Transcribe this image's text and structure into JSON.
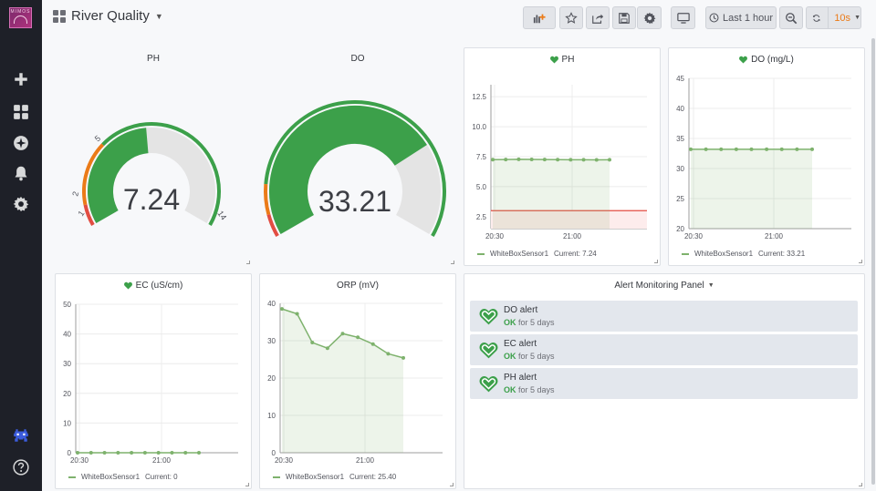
{
  "sidebar": {
    "logo_text": "MIMOS",
    "items": [
      "plus-icon",
      "dashboards-icon",
      "explore-icon",
      "alerting-icon",
      "configuration-icon",
      "user-avatar",
      "help-icon"
    ]
  },
  "navbar": {
    "title": "River Quality",
    "time_range": "Last 1 hour",
    "refresh_interval": "10s"
  },
  "gauges": [
    {
      "title": "PH",
      "value": "7.24",
      "ticks": [
        "1",
        "2",
        "5",
        "14"
      ],
      "min": 1,
      "max": 14,
      "thresholds": [
        2,
        5
      ],
      "reading": 7.24
    },
    {
      "title": "DO",
      "value": "33.21",
      "min": 0,
      "max": 45,
      "reading": 33.21
    }
  ],
  "chart_data": [
    {
      "type": "line",
      "title": "PH",
      "x_ticks": [
        "20:30",
        "21:00"
      ],
      "y_ticks": [
        "2.5",
        "5.0",
        "7.5",
        "10.0",
        "12.5"
      ],
      "ylim": [
        1.5,
        13.5
      ],
      "threshold": 3.0,
      "series": [
        {
          "name": "WhiteBoxSensor1",
          "values": [
            7.25,
            7.26,
            7.28,
            7.27,
            7.26,
            7.25,
            7.24,
            7.24,
            7.23,
            7.24
          ]
        }
      ],
      "legend": {
        "series": "WhiteBoxSensor1",
        "current_label": "Current:",
        "current": "7.24"
      }
    },
    {
      "type": "line",
      "title": "DO (mg/L)",
      "x_ticks": [
        "20:30",
        "21:00"
      ],
      "y_ticks": [
        "20",
        "25",
        "30",
        "35",
        "40",
        "45"
      ],
      "ylim": [
        20,
        45
      ],
      "series": [
        {
          "name": "WhiteBoxSensor1",
          "values": [
            33.2,
            33.2,
            33.2,
            33.2,
            33.2,
            33.2,
            33.2,
            33.2,
            33.21
          ]
        }
      ],
      "legend": {
        "series": "WhiteBoxSensor1",
        "current_label": "Current:",
        "current": "33.21"
      }
    },
    {
      "type": "line",
      "title": "EC (uS/cm)",
      "x_ticks": [
        "20:30",
        "21:00"
      ],
      "y_ticks": [
        "0",
        "10",
        "20",
        "30",
        "40",
        "50"
      ],
      "ylim": [
        0,
        50
      ],
      "series": [
        {
          "name": "WhiteBoxSensor1",
          "values": [
            0,
            0,
            0,
            0,
            0,
            0,
            0,
            0,
            0,
            0
          ]
        }
      ],
      "legend": {
        "series": "WhiteBoxSensor1",
        "current_label": "Current:",
        "current": "0"
      }
    },
    {
      "type": "area",
      "title": "ORP (mV)",
      "x_ticks": [
        "20:30",
        "21:00"
      ],
      "y_ticks": [
        "0",
        "10",
        "20",
        "30",
        "40"
      ],
      "ylim": [
        0,
        40
      ],
      "series": [
        {
          "name": "WhiteBoxSensor1",
          "values": [
            38.5,
            37.2,
            29.5,
            28.0,
            31.9,
            30.9,
            29.1,
            26.5,
            25.4
          ]
        }
      ],
      "legend": {
        "series": "WhiteBoxSensor1",
        "current_label": "Current:",
        "current": "25.40"
      }
    }
  ],
  "alert_panel": {
    "title": "Alert Monitoring Panel",
    "alerts": [
      {
        "name": "DO alert",
        "state": "OK",
        "duration": "for 5 days"
      },
      {
        "name": "EC alert",
        "state": "OK",
        "duration": "for 5 days"
      },
      {
        "name": "PH alert",
        "state": "OK",
        "duration": "for 5 days"
      }
    ]
  },
  "colors": {
    "ok_green": "#3ca04a",
    "series_green": "#7eb26d",
    "threshold_red": "#e24d42",
    "refresh_orange": "#eb7b18"
  }
}
